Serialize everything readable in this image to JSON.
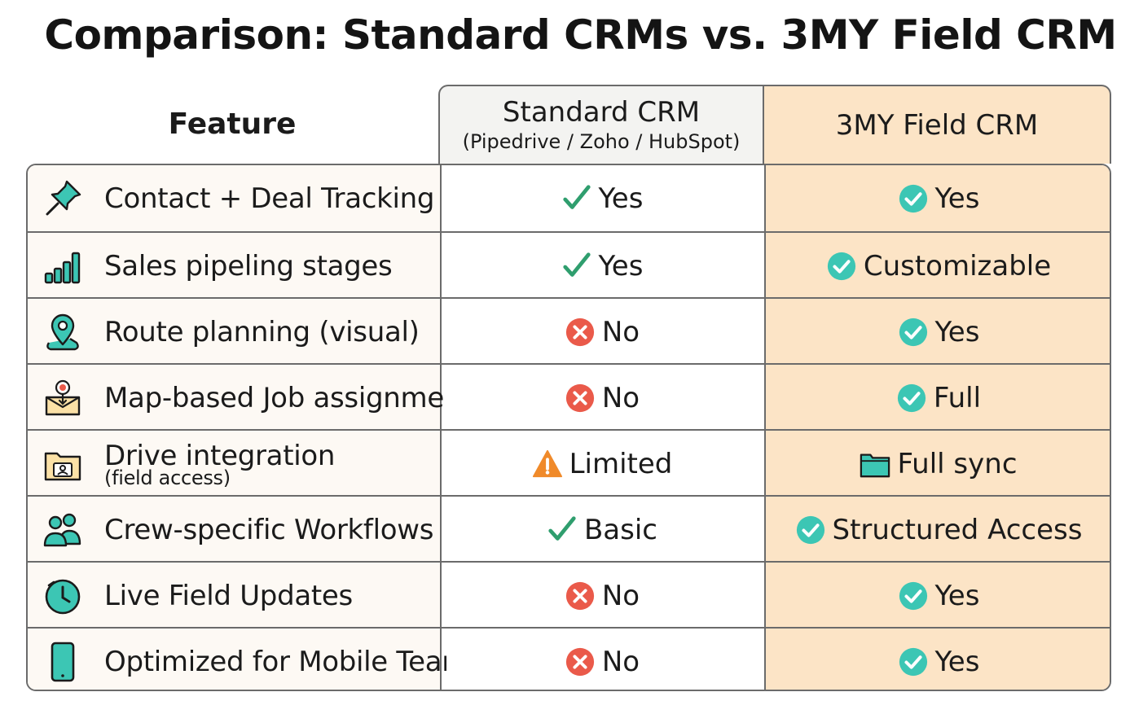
{
  "title": "Comparison: Standard CRMs vs. 3MY Field CRM",
  "header": {
    "feature": "Feature",
    "standard_title": "Standard CRM",
    "standard_sub": "(Pipedrive / Zoho / HubSpot)",
    "field": "3MY Field CRM"
  },
  "colors": {
    "teal": "#3cc6b4",
    "red": "#ea5a4a",
    "orange": "#f08a2a",
    "field_bg": "#fce4c6",
    "green_check": "#2f9e6e"
  },
  "rows": [
    {
      "icon": "pushpin-icon",
      "feature": "Contact + Deal Tracking",
      "feature_sub": "",
      "standard": {
        "mark": "check",
        "text": "Yes"
      },
      "field": {
        "mark": "check-circle",
        "text": "Yes"
      }
    },
    {
      "icon": "bar-chart-icon",
      "feature": "Sales pipeling stages",
      "feature_sub": "",
      "standard": {
        "mark": "check",
        "text": "Yes"
      },
      "field": {
        "mark": "check-circle",
        "text": "Customizable"
      }
    },
    {
      "icon": "map-pin-icon",
      "feature": "Route planning (visual)",
      "feature_sub": "",
      "standard": {
        "mark": "x-circle",
        "text": "No"
      },
      "field": {
        "mark": "check-circle",
        "text": "Yes"
      }
    },
    {
      "icon": "map-target-icon",
      "feature": "Map-based Job assignme",
      "feature_sub": "",
      "standard": {
        "mark": "x-circle",
        "text": "No"
      },
      "field": {
        "mark": "check-circle",
        "text": "Full"
      }
    },
    {
      "icon": "drive-folder-icon",
      "feature": "Drive integration",
      "feature_sub": "(field access)",
      "standard": {
        "mark": "warning",
        "text": "Limited"
      },
      "field": {
        "mark": "folder",
        "text": "Full sync"
      }
    },
    {
      "icon": "users-icon",
      "feature": "Crew-specific Workflows",
      "feature_sub": "",
      "standard": {
        "mark": "check",
        "text": "Basic"
      },
      "field": {
        "mark": "check-circle",
        "text": "Structured Access"
      }
    },
    {
      "icon": "clock-icon",
      "feature": "Live Field Updates",
      "feature_sub": "",
      "standard": {
        "mark": "x-circle",
        "text": "No"
      },
      "field": {
        "mark": "check-circle",
        "text": "Yes"
      }
    },
    {
      "icon": "mobile-phone-icon",
      "feature": "Optimized for Mobile Teams",
      "feature_sub": "",
      "standard": {
        "mark": "x-circle",
        "text": "No"
      },
      "field": {
        "mark": "check-circle",
        "text": "Yes"
      }
    }
  ]
}
